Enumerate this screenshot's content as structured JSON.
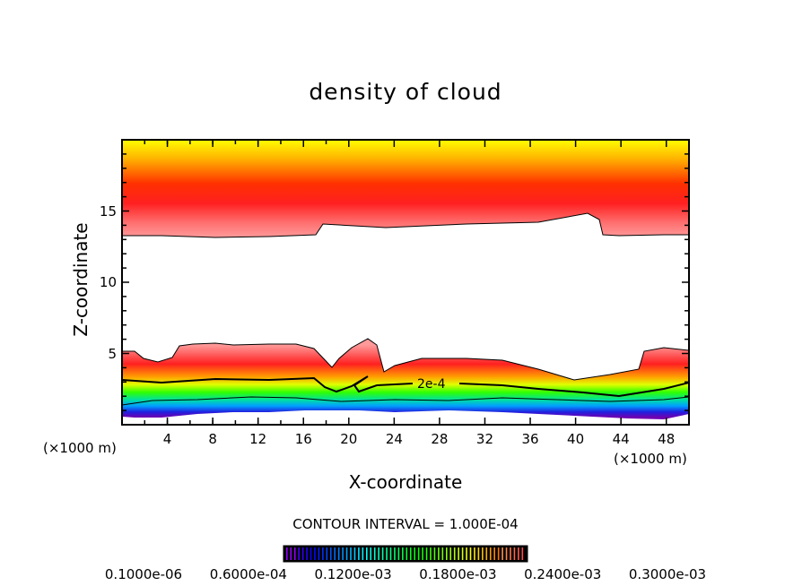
{
  "chart_data": {
    "type": "heatmap",
    "title": "density of cloud",
    "xlabel": "X-coordinate",
    "ylabel": "Z-coordinate",
    "x_unit_left": "(×1000 m)",
    "x_unit_right": "(×1000 m)",
    "xlim": [
      0,
      50
    ],
    "ylim": [
      0,
      20
    ],
    "xticks": [
      "4",
      "8",
      "12",
      "16",
      "20",
      "24",
      "28",
      "32",
      "36",
      "40",
      "44",
      "48"
    ],
    "xtick_values": [
      4,
      8,
      12,
      16,
      20,
      24,
      28,
      32,
      36,
      40,
      44,
      48
    ],
    "yticks": [
      "5",
      "10",
      "15"
    ],
    "ytick_values": [
      5,
      10,
      15
    ],
    "contour_label": "2e-4",
    "contour_interval": "CONTOUR INTERVAL = 1.000E-04",
    "colorbar_labels": [
      "0.1000e-06",
      "0.6000e-04",
      "0.1200e-03",
      "0.1800e-03",
      "0.2400e-03",
      "0.3000e-03"
    ],
    "colorbar_range": [
      1e-07,
      0.0003
    ],
    "colors": {
      "low": "#6a00a8",
      "mid": "#00ff00",
      "high": "#ff0000",
      "top": "#ffff00"
    }
  }
}
